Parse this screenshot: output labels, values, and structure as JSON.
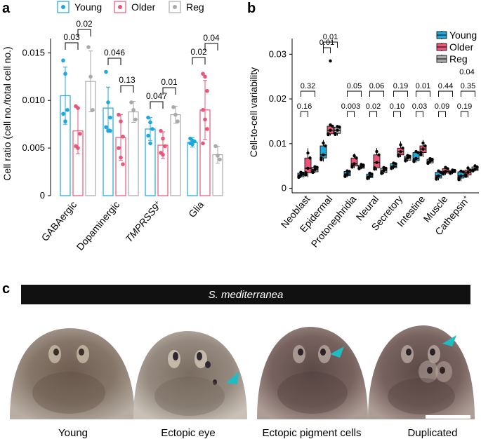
{
  "panels": {
    "a": {
      "letter": "a",
      "legend": [
        "Young",
        "Older",
        "Reg"
      ],
      "ylabel": "Cell ratio (cell no./total cell no.)",
      "yticks": [
        "0",
        "0.005",
        "0.010",
        "0.015"
      ],
      "categories": [
        "GABAergic",
        "Dopaminergic",
        "TMPRSS9",
        "Glia"
      ],
      "superscript": "+",
      "pvalues": [
        "0.03",
        "0.02",
        "0.046",
        "0.13",
        "0.047",
        "0.01",
        "0.02",
        "0.04"
      ]
    },
    "b": {
      "letter": "b",
      "legend": [
        "Young",
        "Older",
        "Reg"
      ],
      "ylabel": "Cell-to-cell variability",
      "yticks": [
        "0",
        "0.01",
        "0.02",
        "0.03"
      ],
      "categories": [
        "Neoblast",
        "Epidermal",
        "Protonephridia",
        "Neural",
        "Secretory",
        "Intestine",
        "Muscle",
        "Cathepsin"
      ],
      "superscript": "+",
      "pvalues_upper": [
        "0.32",
        "0.01",
        "0.05",
        "0.06",
        "0.19",
        "0.01",
        "0.44",
        "0.35"
      ],
      "pvalues_lower": [
        "0.16",
        "0.01",
        "0.003",
        "0.02",
        "0.10",
        "0.03",
        "0.09",
        "0.19"
      ],
      "pvalue_extra": "0.04"
    },
    "c": {
      "letter": "c",
      "banner": "S. mediterranea",
      "captions": [
        "Young",
        "Ectopic eye",
        "Ectopic pigment cells",
        "Duplicated"
      ]
    }
  },
  "colors": {
    "young": "#1fa8d8",
    "older": "#e8567a",
    "reg": "#aaaaaa",
    "arrow": "#1dbdc4"
  },
  "chart_data": [
    {
      "type": "bar",
      "categories": [
        "GABAergic",
        "Dopaminergic",
        "TMPRSS9+",
        "Glia"
      ],
      "series": [
        {
          "name": "Young",
          "values": [
            0.0105,
            0.0092,
            0.007,
            0.0056
          ]
        },
        {
          "name": "Older",
          "values": [
            0.0068,
            0.0061,
            0.0053,
            0.009
          ]
        },
        {
          "name": "Reg",
          "values": [
            0.012,
            0.0088,
            0.0085,
            0.0043
          ]
        }
      ],
      "errors": [
        {
          "name": "Young",
          "values": [
            0.003,
            0.0022,
            0.0012,
            0.0005
          ]
        },
        {
          "name": "Older",
          "values": [
            0.0024,
            0.0024,
            0.0014,
            0.0031
          ]
        },
        {
          "name": "Reg",
          "values": [
            0.0032,
            0.0011,
            0.0009,
            0.0009
          ]
        }
      ],
      "points": [
        {
          "name": "Young",
          "values": [
            [
              0.0142,
              0.0128,
              0.009,
              0.0086,
              0.0078
            ],
            [
              0.013,
              0.0098,
              0.0082,
              0.0072,
              0.0068,
              0.0068
            ],
            [
              0.0082,
              0.0077,
              0.007,
              0.0063,
              0.0055
            ],
            [
              0.006,
              0.0058,
              0.0057,
              0.0055,
              0.0054
            ]
          ]
        },
        {
          "name": "Older",
          "values": [
            [
              0.0094,
              0.0092,
              0.0065,
              0.0052,
              0.005
            ],
            [
              0.0085,
              0.0078,
              0.0062,
              0.005,
              0.004,
              0.0033
            ],
            [
              0.0068,
              0.006,
              0.0052,
              0.0045,
              0.0043
            ],
            [
              0.0128,
              0.0125,
              0.011,
              0.009,
              0.008,
              0.007,
              0.0055
            ]
          ]
        },
        {
          "name": "Reg",
          "values": [
            [
              0.0156,
              0.0125,
              0.009
            ],
            [
              0.0098,
              0.009,
              0.008
            ],
            [
              0.0093,
              0.0085,
              0.0078
            ],
            [
              0.0052,
              0.0042,
              0.0038
            ]
          ]
        }
      ],
      "ylabel": "Cell ratio (cell no./total cell no.)",
      "ylim": [
        0,
        0.0165
      ],
      "legend_position": "top"
    },
    {
      "type": "box",
      "categories": [
        "Neoblast",
        "Epidermal",
        "Protonephridia",
        "Neural",
        "Secretory",
        "Intestine",
        "Muscle",
        "Cathepsin+"
      ],
      "series": [
        {
          "name": "Young",
          "boxes": [
            [
              0.0023,
              0.0026,
              0.003,
              0.0034,
              0.0038
            ],
            [
              0.006,
              0.0068,
              0.0075,
              0.0095,
              0.0108
            ],
            [
              0.0025,
              0.0028,
              0.0032,
              0.0038,
              0.004
            ],
            [
              0.002,
              0.0024,
              0.0027,
              0.0032,
              0.0036
            ],
            [
              0.0043,
              0.0046,
              0.0049,
              0.0055,
              0.0058
            ],
            [
              0.0058,
              0.0062,
              0.0067,
              0.008,
              0.0085
            ],
            [
              0.0018,
              0.0023,
              0.0028,
              0.0036,
              0.0042
            ],
            [
              0.0016,
              0.0023,
              0.0028,
              0.0037,
              0.004
            ]
          ]
        },
        {
          "name": "Older",
          "boxes": [
            [
              0.0025,
              0.0035,
              0.0045,
              0.0068,
              0.009
            ],
            [
              0.0118,
              0.0122,
              0.013,
              0.0139,
              0.0145
            ],
            [
              0.0045,
              0.005,
              0.0055,
              0.0068,
              0.0078
            ],
            [
              0.004,
              0.0046,
              0.0058,
              0.0075,
              0.009
            ],
            [
              0.007,
              0.0075,
              0.0082,
              0.009,
              0.0105
            ],
            [
              0.007,
              0.008,
              0.0088,
              0.0095,
              0.0108
            ],
            [
              0.003,
              0.0034,
              0.0038,
              0.0044,
              0.005
            ],
            [
              0.0024,
              0.003,
              0.0036,
              0.0041,
              0.005
            ]
          ]
        },
        {
          "name": "Reg",
          "boxes": [
            [
              0.0034,
              0.0037,
              0.0042,
              0.0047,
              0.005
            ],
            [
              0.0118,
              0.0123,
              0.013,
              0.0137,
              0.014
            ],
            [
              0.0043,
              0.0045,
              0.0048,
              0.0052,
              0.0055
            ],
            [
              0.0032,
              0.0035,
              0.004,
              0.0045,
              0.0048
            ],
            [
              0.006,
              0.0063,
              0.0068,
              0.0072,
              0.0075
            ],
            [
              0.0055,
              0.0057,
              0.0061,
              0.0065,
              0.0068
            ],
            [
              0.0032,
              0.0035,
              0.0037,
              0.004,
              0.0042
            ],
            [
              0.0038,
              0.004,
              0.0043,
              0.0048,
              0.0053
            ]
          ]
        }
      ],
      "outliers": [
        {
          "category": "Epidermal",
          "series": "Older",
          "value": 0.0285
        }
      ],
      "ylabel": "Cell-to-cell variability",
      "ylim": [
        -0.001,
        0.0335
      ],
      "legend_position": "top-right"
    }
  ]
}
